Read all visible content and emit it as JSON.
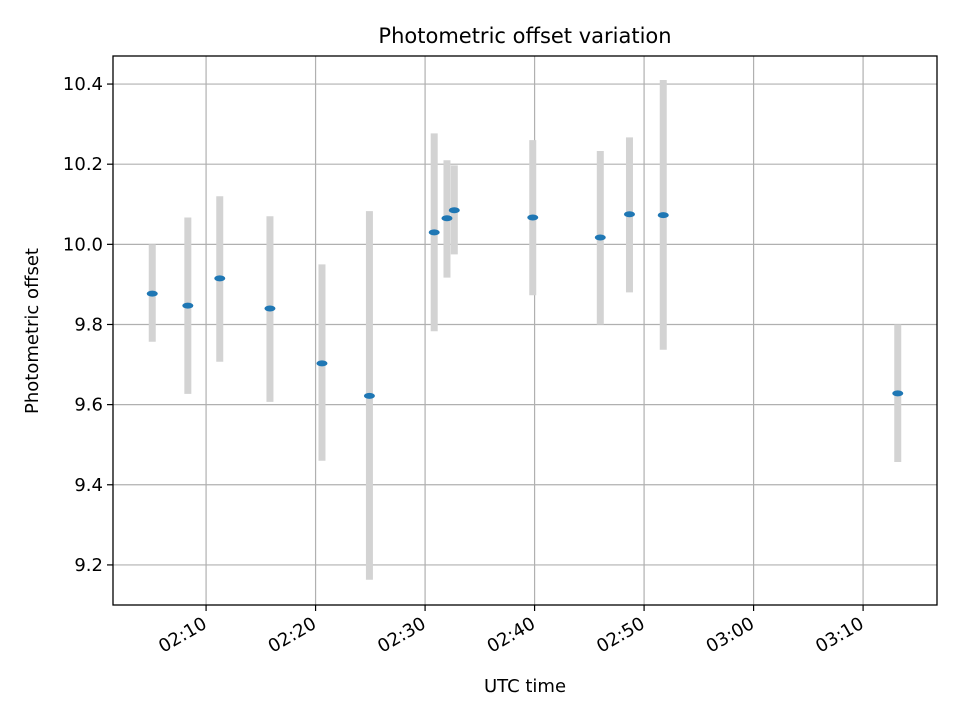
{
  "chart_data": {
    "type": "scatter",
    "title": "Photometric offset variation",
    "xlabel": "UTC time",
    "ylabel": "Photometric offset",
    "x_axis_type": "time",
    "xlim": [
      "02:01:30",
      "03:16:45"
    ],
    "ylim": [
      9.1,
      10.47
    ],
    "grid": true,
    "x_ticks": [
      "02:10",
      "02:20",
      "02:30",
      "02:40",
      "02:50",
      "03:00",
      "03:10"
    ],
    "y_ticks": [
      "9.2",
      "9.4",
      "9.6",
      "9.8",
      "10.0",
      "10.2",
      "10.4"
    ],
    "points": [
      {
        "time": "02:05:05",
        "value": 9.877,
        "low": 9.757,
        "high": 10.0
      },
      {
        "time": "02:08:20",
        "value": 9.847,
        "low": 9.627,
        "high": 10.067
      },
      {
        "time": "02:11:15",
        "value": 9.915,
        "low": 9.707,
        "high": 10.12
      },
      {
        "time": "02:15:50",
        "value": 9.84,
        "low": 9.607,
        "high": 10.07
      },
      {
        "time": "02:20:35",
        "value": 9.703,
        "low": 9.46,
        "high": 9.95
      },
      {
        "time": "02:24:55",
        "value": 9.622,
        "low": 9.163,
        "high": 10.083
      },
      {
        "time": "02:30:50",
        "value": 10.03,
        "low": 9.783,
        "high": 10.277
      },
      {
        "time": "02:32:00",
        "value": 10.065,
        "low": 9.917,
        "high": 10.21
      },
      {
        "time": "02:32:40",
        "value": 10.085,
        "low": 9.975,
        "high": 10.197
      },
      {
        "time": "02:39:50",
        "value": 10.067,
        "low": 9.873,
        "high": 10.26
      },
      {
        "time": "02:46:00",
        "value": 10.017,
        "low": 9.8,
        "high": 10.233
      },
      {
        "time": "02:48:40",
        "value": 10.075,
        "low": 9.88,
        "high": 10.267
      },
      {
        "time": "02:51:45",
        "value": 10.073,
        "low": 9.737,
        "high": 10.41
      },
      {
        "time": "03:13:10",
        "value": 9.628,
        "low": 9.457,
        "high": 9.8
      }
    ],
    "colors": {
      "point": "#1f77b4",
      "errorbar": "#d3d3d3",
      "grid": "#b0b0b0",
      "axis": "#000000"
    }
  }
}
